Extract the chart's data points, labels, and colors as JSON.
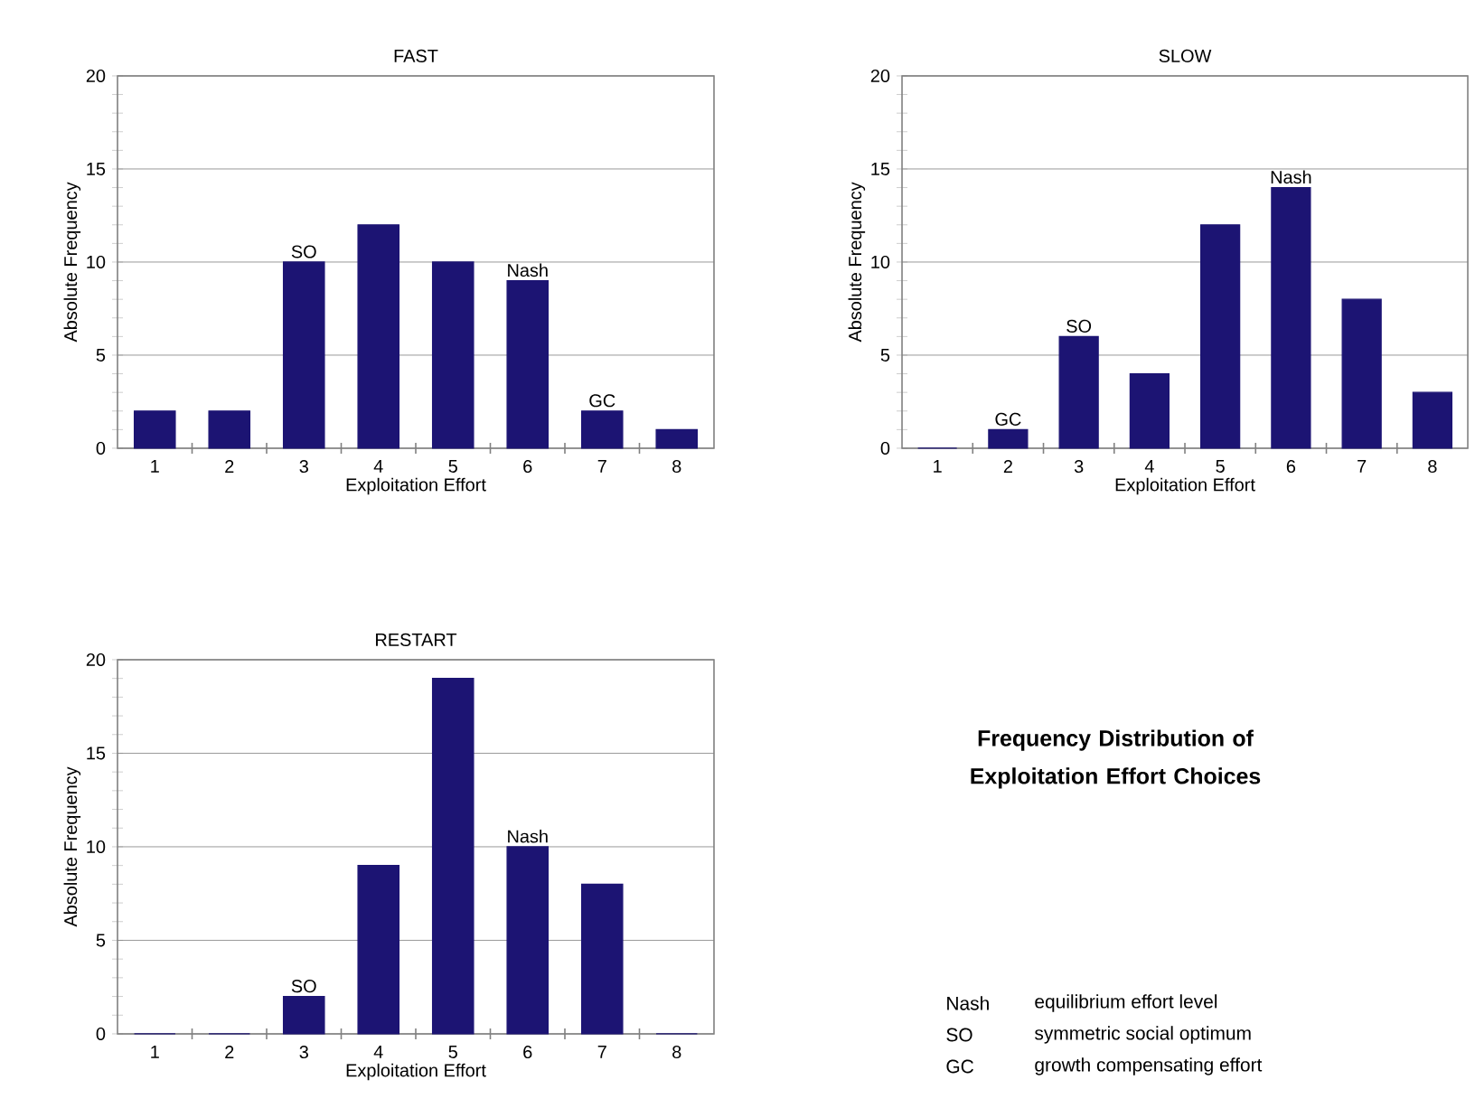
{
  "chart_data": [
    {
      "type": "bar",
      "title": "FAST",
      "x": [
        1,
        2,
        3,
        4,
        5,
        6,
        7,
        8
      ],
      "values": [
        2,
        2,
        10,
        12,
        10,
        9,
        2,
        1
      ],
      "color": "#1c1473",
      "xlabel": "Exploitation Effort",
      "ylabel": "Absolute Frequency",
      "xlim": [
        0.5,
        8.5
      ],
      "xticks": [
        1,
        2,
        3,
        4,
        5,
        6,
        7,
        8
      ],
      "ylim": [
        0,
        20
      ],
      "yticks": [
        0,
        5,
        10,
        15,
        20
      ],
      "grid": "y",
      "annotations": [
        {
          "text": "SO",
          "x": 3,
          "y": 10
        },
        {
          "text": "Nash",
          "x": 6,
          "y": 9
        },
        {
          "text": "GC",
          "x": 7,
          "y": 2
        }
      ]
    },
    {
      "type": "bar",
      "title": "SLOW",
      "x": [
        1,
        2,
        3,
        4,
        5,
        6,
        7,
        8
      ],
      "values": [
        0,
        1,
        6,
        4,
        12,
        14,
        8,
        3
      ],
      "color": "#1c1473",
      "xlabel": "Exploitation Effort",
      "ylabel": "Absolute Frequency",
      "xlim": [
        0.5,
        8.5
      ],
      "xticks": [
        1,
        2,
        3,
        4,
        5,
        6,
        7,
        8
      ],
      "ylim": [
        0,
        20
      ],
      "yticks": [
        0,
        5,
        10,
        15,
        20
      ],
      "grid": "y",
      "annotations": [
        {
          "text": "GC",
          "x": 2,
          "y": 1
        },
        {
          "text": "SO",
          "x": 3,
          "y": 6
        },
        {
          "text": "Nash",
          "x": 6,
          "y": 14
        }
      ]
    },
    {
      "type": "bar",
      "title": "RESTART",
      "x": [
        1,
        2,
        3,
        4,
        5,
        6,
        7,
        8
      ],
      "values": [
        0,
        0,
        2,
        9,
        19,
        10,
        8,
        0
      ],
      "color": "#1c1473",
      "xlabel": "Exploitation Effort",
      "ylabel": "Absolute Frequency",
      "xlim": [
        0.5,
        8.5
      ],
      "xticks": [
        1,
        2,
        3,
        4,
        5,
        6,
        7,
        8
      ],
      "ylim": [
        0,
        20
      ],
      "yticks": [
        0,
        5,
        10,
        15,
        20
      ],
      "grid": "y",
      "annotations": [
        {
          "text": "SO",
          "x": 3,
          "y": 2
        },
        {
          "text": "Nash",
          "x": 6,
          "y": 10
        }
      ]
    },
    {
      "type": "other",
      "title": "Frequency Distribution of Exploitation Effort Choices",
      "annotations": [
        "Nash",
        "equilibrium effort level",
        "SO",
        "symmetric social optimum",
        "GC",
        "growth compensating effort"
      ]
    }
  ]
}
